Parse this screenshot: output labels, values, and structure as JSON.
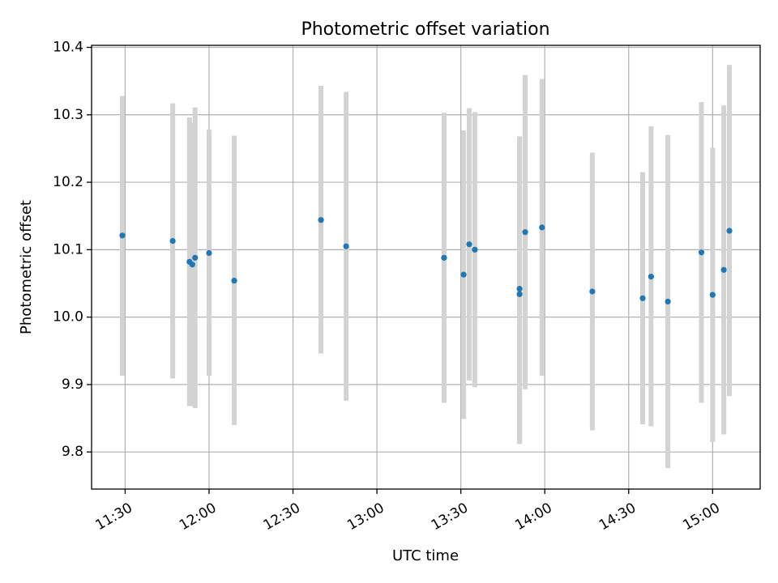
{
  "chart_data": {
    "type": "scatter",
    "title": "Photometric offset variation",
    "xlabel": "UTC time",
    "ylabel": "Photometric offset",
    "xlim": [
      "11:18",
      "15:17"
    ],
    "ylim": [
      9.745,
      10.403
    ],
    "grid": true,
    "x_ticks": [
      "11:30",
      "12:00",
      "12:30",
      "13:00",
      "13:30",
      "14:00",
      "14:30",
      "15:00"
    ],
    "y_ticks": [
      "9.8",
      "9.9",
      "10.0",
      "10.1",
      "10.2",
      "10.3",
      "10.4"
    ],
    "colors": {
      "point": "#1f77b4",
      "errorbar": "#d3d3d3",
      "grid": "#b0b0b0"
    },
    "points": [
      {
        "x": "11:29",
        "y": 10.121,
        "ylow": 9.913,
        "yhigh": 10.328
      },
      {
        "x": "11:47",
        "y": 10.113,
        "ylow": 9.909,
        "yhigh": 10.317
      },
      {
        "x": "11:53",
        "y": 10.082,
        "ylow": 9.868,
        "yhigh": 10.296
      },
      {
        "x": "11:54",
        "y": 10.078,
        "ylow": 9.868,
        "yhigh": 10.288
      },
      {
        "x": "11:55",
        "y": 10.088,
        "ylow": 9.865,
        "yhigh": 10.311
      },
      {
        "x": "12:00",
        "y": 10.095,
        "ylow": 9.913,
        "yhigh": 10.278
      },
      {
        "x": "12:09",
        "y": 10.054,
        "ylow": 9.84,
        "yhigh": 10.269
      },
      {
        "x": "12:40",
        "y": 10.144,
        "ylow": 9.946,
        "yhigh": 10.343
      },
      {
        "x": "12:49",
        "y": 10.105,
        "ylow": 9.876,
        "yhigh": 10.334
      },
      {
        "x": "13:24",
        "y": 10.088,
        "ylow": 9.873,
        "yhigh": 10.303
      },
      {
        "x": "13:31",
        "y": 10.063,
        "ylow": 9.849,
        "yhigh": 10.277
      },
      {
        "x": "13:33",
        "y": 10.108,
        "ylow": 9.906,
        "yhigh": 10.31
      },
      {
        "x": "13:35",
        "y": 10.1,
        "ylow": 9.896,
        "yhigh": 10.304
      },
      {
        "x": "13:51",
        "y": 10.042,
        "ylow": 9.812,
        "yhigh": 10.268
      },
      {
        "x": "13:51",
        "y": 10.034,
        "ylow": 9.812,
        "yhigh": 10.268
      },
      {
        "x": "13:53",
        "y": 10.126,
        "ylow": 9.893,
        "yhigh": 10.359
      },
      {
        "x": "13:59",
        "y": 10.133,
        "ylow": 9.913,
        "yhigh": 10.353
      },
      {
        "x": "14:17",
        "y": 10.038,
        "ylow": 9.832,
        "yhigh": 10.244
      },
      {
        "x": "14:35",
        "y": 10.028,
        "ylow": 9.841,
        "yhigh": 10.215
      },
      {
        "x": "14:38",
        "y": 10.06,
        "ylow": 9.838,
        "yhigh": 10.283
      },
      {
        "x": "14:44",
        "y": 10.023,
        "ylow": 9.776,
        "yhigh": 10.27
      },
      {
        "x": "14:56",
        "y": 10.096,
        "ylow": 9.873,
        "yhigh": 10.319
      },
      {
        "x": "15:00",
        "y": 10.033,
        "ylow": 9.815,
        "yhigh": 10.251
      },
      {
        "x": "15:04",
        "y": 10.07,
        "ylow": 9.826,
        "yhigh": 10.314
      },
      {
        "x": "15:06",
        "y": 10.128,
        "ylow": 9.883,
        "yhigh": 10.374
      }
    ]
  }
}
